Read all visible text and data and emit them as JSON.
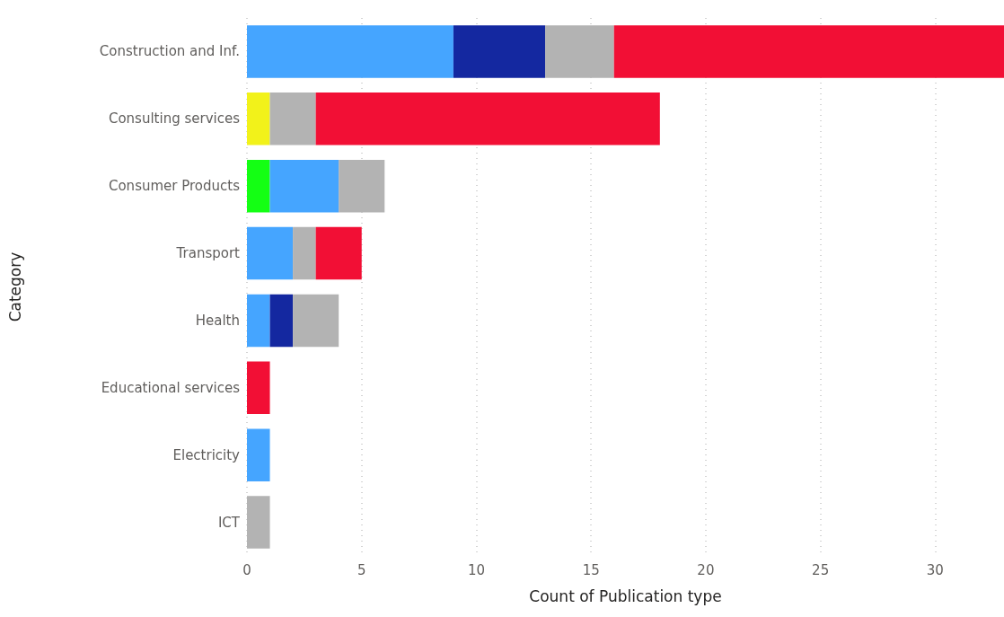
{
  "chart_data": {
    "type": "bar",
    "orientation": "horizontal",
    "stacked": true,
    "xlabel": "Count of Publication type",
    "ylabel": "Category",
    "categories": [
      "Construction and Inf.",
      "Consulting services",
      "Consumer Products",
      "Transport",
      "Health",
      "Educational services",
      "Electricity",
      "ICT"
    ],
    "series": [
      {
        "color": "#14ff14",
        "values": [
          null,
          null,
          1,
          null,
          null,
          null,
          null,
          null
        ]
      },
      {
        "color": "#f2f21a",
        "values": [
          null,
          1,
          null,
          null,
          null,
          null,
          null,
          null
        ]
      },
      {
        "color": "#45a5ff",
        "values": [
          9,
          null,
          3,
          2,
          1,
          null,
          1,
          null
        ]
      },
      {
        "color": "#1428a0",
        "values": [
          4,
          null,
          null,
          null,
          1,
          null,
          null,
          null
        ]
      },
      {
        "color": "#b3b3b3",
        "values": [
          3,
          2,
          2,
          1,
          2,
          null,
          null,
          1
        ]
      },
      {
        "color": "#f20f35",
        "values": [
          17,
          15,
          null,
          2,
          null,
          1,
          null,
          null
        ]
      }
    ],
    "xlim": [
      0,
      33
    ],
    "xticks": [
      0,
      5,
      10,
      15,
      20,
      25,
      30
    ],
    "grid": "x"
  }
}
